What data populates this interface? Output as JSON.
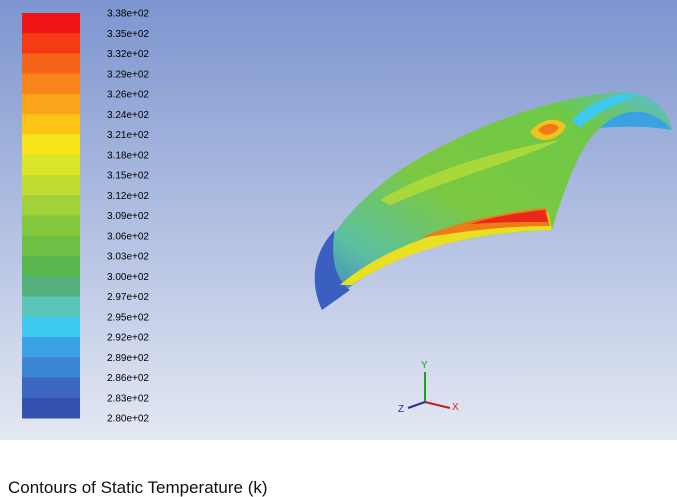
{
  "legend": {
    "labels": [
      "3.38e+02",
      "3.35e+02",
      "3.32e+02",
      "3.29e+02",
      "3.26e+02",
      "3.24e+02",
      "3.21e+02",
      "3.18e+02",
      "3.15e+02",
      "3.12e+02",
      "3.09e+02",
      "3.06e+02",
      "3.03e+02",
      "3.00e+02",
      "2.97e+02",
      "2.95e+02",
      "2.92e+02",
      "2.89e+02",
      "2.86e+02",
      "2.83e+02",
      "2.80e+02"
    ],
    "colors": [
      "#f01414",
      "#f43c14",
      "#f6641a",
      "#f8841c",
      "#fba41a",
      "#fcc414",
      "#f8e41a",
      "#dce628",
      "#c0dc32",
      "#a2d23a",
      "#84c83e",
      "#6cc044",
      "#58b84e",
      "#54b07a",
      "#5cc4b8",
      "#3ecaf0",
      "#3aa2e2",
      "#3c84d4",
      "#3c68c2",
      "#3652b0"
    ]
  },
  "axes": {
    "x": "X",
    "y": "Y",
    "z": "Z"
  },
  "caption": "Contours of Static Temperature (k)"
}
